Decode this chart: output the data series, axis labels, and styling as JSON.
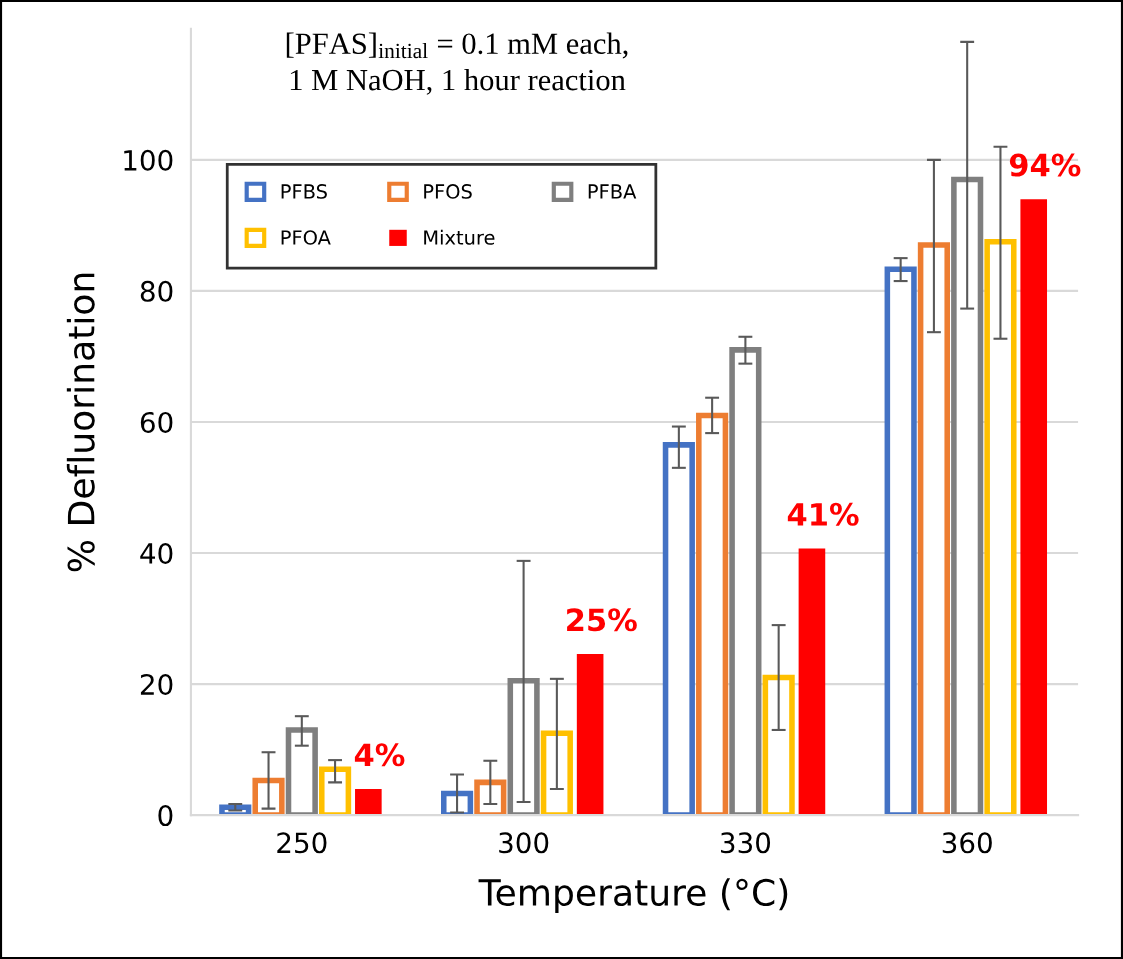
{
  "chart_data": {
    "type": "bar",
    "title": "[PFAS]$_{initial}$ = 0.1 mM each,\n1 M NaOH, 1 hour reaction",
    "xlabel": "Temperature (°C)",
    "ylabel": "% Defluorination",
    "categories": [
      "250",
      "300",
      "330",
      "360"
    ],
    "series": [
      {
        "name": "PFBS",
        "color": "#4472c4",
        "values": [
          1.2,
          3.3,
          56.5,
          83.3
        ],
        "errors": [
          [
            0.7,
            1.7
          ],
          [
            0.4,
            6.2
          ],
          [
            53.0,
            59.3
          ],
          [
            81.5,
            85.0
          ]
        ]
      },
      {
        "name": "PFOS",
        "color": "#ed7d31",
        "values": [
          5.3,
          5.0,
          61.0,
          87.0
        ],
        "errors": [
          [
            1.0,
            9.6
          ],
          [
            1.7,
            8.3
          ],
          [
            58.3,
            63.7
          ],
          [
            73.7,
            100.0
          ]
        ]
      },
      {
        "name": "PFBA",
        "color": "#7f7f7f",
        "values": [
          13.0,
          20.5,
          71.0,
          97.0
        ],
        "errors": [
          [
            10.6,
            15.1
          ],
          [
            2.0,
            38.8
          ],
          [
            68.9,
            73.0
          ],
          [
            77.3,
            118.0
          ]
        ]
      },
      {
        "name": "PFOA",
        "color": "#ffc000",
        "values": [
          7.0,
          12.5,
          21.0,
          87.5
        ],
        "errors": [
          [
            5.0,
            8.4
          ],
          [
            4.0,
            20.8
          ],
          [
            13.0,
            29.0
          ],
          [
            72.7,
            102.0
          ]
        ]
      },
      {
        "name": "Mixture",
        "color": "#ff0000",
        "values": [
          4.0,
          24.6,
          40.7,
          94.0
        ],
        "value_labels": [
          "4%",
          "25%",
          "41%",
          "94%"
        ]
      }
    ],
    "ylim": [
      0,
      120
    ],
    "yticks": [
      0,
      20,
      40,
      60,
      80,
      100
    ],
    "grid": "y",
    "legend": "top left"
  }
}
